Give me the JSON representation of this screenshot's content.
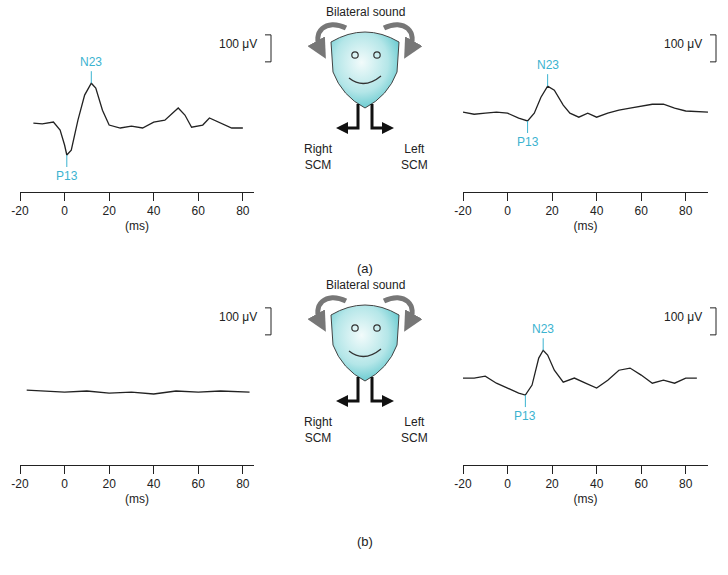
{
  "chart_data": [
    {
      "type": "line",
      "color": "#222222",
      "annotation_color": "#3bb3d0",
      "x": [
        -14,
        -10,
        -5,
        -2,
        0,
        1,
        3,
        6,
        9,
        12,
        14,
        17,
        20,
        25,
        30,
        35,
        40,
        45,
        51,
        54,
        57,
        62,
        65,
        70,
        75,
        80
      ],
      "values": [
        -15,
        -18,
        -11,
        -41,
        -96,
        -133,
        -115,
        -4,
        89,
        133,
        115,
        33,
        -22,
        -33,
        -26,
        -33,
        -11,
        -4,
        41,
        15,
        -30,
        -22,
        4,
        -15,
        -33,
        -33
      ],
      "xlim": [
        -20,
        85
      ],
      "xticks": [
        -20,
        0,
        20,
        40,
        60,
        80
      ],
      "ylim": [
        -270,
        330
      ],
      "tick_labels": "x",
      "x_label": "(ms)",
      "annotations": [
        {
          "text": "P13",
          "x": 1,
          "y": -133
        },
        {
          "text": "N23",
          "x": 12,
          "y": 133
        }
      ],
      "scale_bar": {
        "value": 100,
        "label": "100 μV"
      }
    },
    {
      "type": "line",
      "color": "#222222",
      "annotation_color": "#3bb3d0",
      "x": [
        -20,
        -15,
        -10,
        -5,
        0,
        5,
        9,
        12,
        15,
        18,
        21,
        25,
        28,
        32,
        36,
        40,
        45,
        50,
        55,
        60,
        65,
        70,
        75,
        80,
        90
      ],
      "values": [
        26,
        18,
        22,
        26,
        22,
        4,
        -7,
        22,
        81,
        122,
        107,
        52,
        22,
        7,
        22,
        7,
        22,
        33,
        41,
        48,
        55,
        55,
        41,
        30,
        26
      ],
      "xlim": [
        -20,
        90
      ],
      "xticks": [
        -20,
        0,
        20,
        40,
        60,
        80
      ],
      "ylim": [
        -270,
        330
      ],
      "tick_labels": "x",
      "x_label": "(ms)",
      "annotations": [
        {
          "text": "P13",
          "x": 9,
          "y": -7
        },
        {
          "text": "N23",
          "x": 18,
          "y": 122
        }
      ],
      "scale_bar": {
        "value": 100,
        "label": "100 μV"
      }
    },
    {
      "type": "line",
      "color": "#222222",
      "annotation_color": "#3bb3d0",
      "x": [
        -17,
        -10,
        0,
        10,
        20,
        30,
        40,
        50,
        60,
        70,
        83
      ],
      "values": [
        7,
        4,
        0,
        4,
        -4,
        0,
        -7,
        4,
        0,
        4,
        0
      ],
      "xlim": [
        -20,
        85
      ],
      "xticks": [
        -20,
        0,
        20,
        40,
        60,
        80
      ],
      "ylim": [
        -270,
        330
      ],
      "tick_labels": "x",
      "x_label": "(ms)",
      "annotations": [],
      "scale_bar": {
        "value": 100,
        "label": "100 μV"
      }
    },
    {
      "type": "line",
      "color": "#222222",
      "annotation_color": "#3bb3d0",
      "x": [
        -20,
        -15,
        -10,
        -5,
        0,
        5,
        8,
        11,
        14,
        16,
        18,
        21,
        25,
        30,
        35,
        40,
        45,
        50,
        55,
        60,
        65,
        70,
        75,
        80,
        85
      ],
      "values": [
        52,
        52,
        59,
        33,
        15,
        -4,
        -11,
        26,
        126,
        155,
        137,
        81,
        37,
        52,
        33,
        15,
        44,
        81,
        89,
        63,
        33,
        44,
        33,
        52,
        52
      ],
      "xlim": [
        -20,
        90
      ],
      "xticks": [
        -20,
        0,
        20,
        40,
        60,
        80
      ],
      "ylim": [
        -270,
        330
      ],
      "tick_labels": "x",
      "x_label": "(ms)",
      "annotations": [
        {
          "text": "P13",
          "x": 8,
          "y": -11
        },
        {
          "text": "N23",
          "x": 16,
          "y": 155
        }
      ],
      "scale_bar": {
        "value": 100,
        "label": "100 μV"
      }
    }
  ],
  "figure": {
    "panels": [
      {
        "label": "(a)",
        "stimulus": "Bilateral sound",
        "left_label": "Right SCM",
        "right_label": "Left SCM"
      },
      {
        "label": "(b)",
        "stimulus": "Bilateral sound",
        "left_label": "Right SCM",
        "right_label": "Left SCM"
      }
    ]
  }
}
